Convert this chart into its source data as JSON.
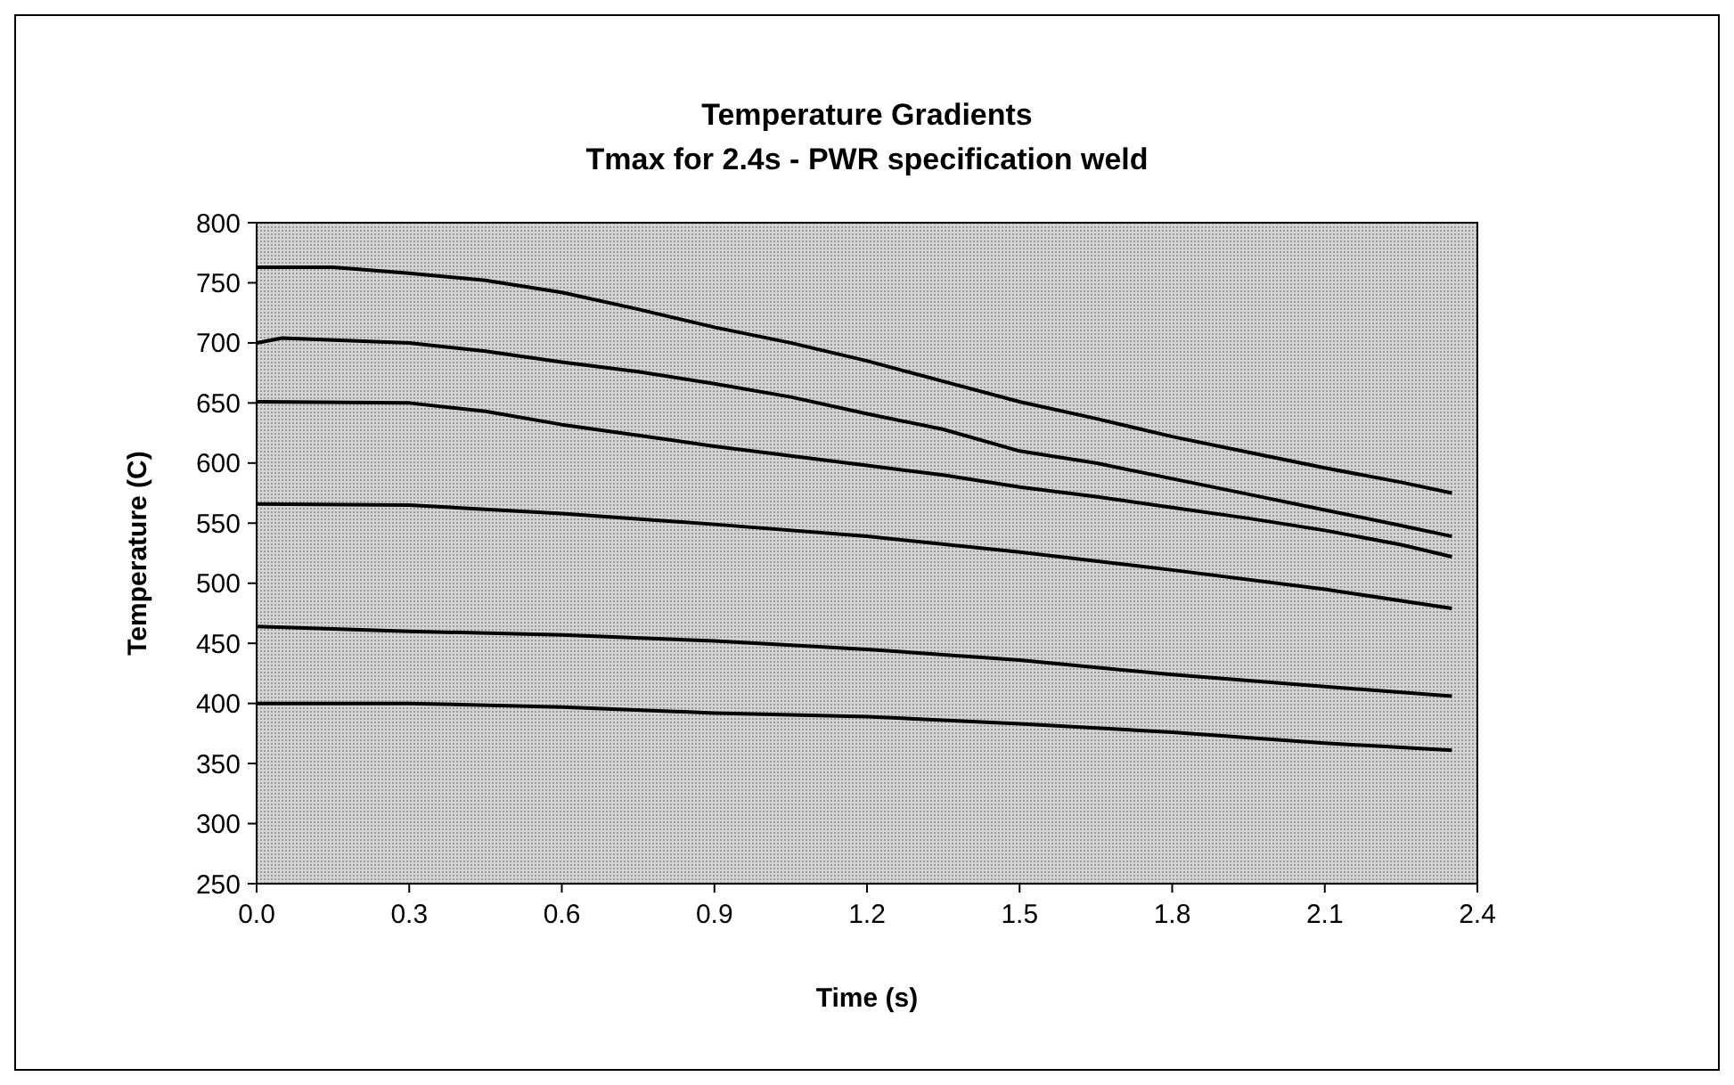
{
  "chart_data": {
    "type": "line",
    "title": "Temperature Gradients",
    "subtitle": "Tmax for 2.4s - PWR specification weld",
    "xlabel": "Time (s)",
    "ylabel": "Temperature (C)",
    "xlim": [
      0,
      2.4
    ],
    "xticks": [
      {
        "value": 0,
        "label": "0.0"
      },
      {
        "value": 0.3,
        "label": "0.3"
      },
      {
        "value": 0.6,
        "label": "0.6"
      },
      {
        "value": 0.9,
        "label": "0.9"
      },
      {
        "value": 1.2,
        "label": "1.2"
      },
      {
        "value": 1.5,
        "label": "1.5"
      },
      {
        "value": 1.8,
        "label": "1.8"
      },
      {
        "value": 2.1,
        "label": "2.1"
      },
      {
        "value": 2.4,
        "label": "2.4"
      }
    ],
    "ylim": [
      250,
      800
    ],
    "yticks": [
      250,
      300,
      350,
      400,
      450,
      500,
      550,
      600,
      650,
      700,
      750,
      800
    ],
    "grid": false,
    "series": [
      {
        "color": "#000000",
        "x": [
          0,
          0.15,
          0.3,
          0.45,
          0.6,
          0.75,
          0.9,
          1.05,
          1.2,
          1.35,
          1.5,
          1.65,
          1.8,
          1.95,
          2.1,
          2.25,
          2.35
        ],
        "values": [
          763,
          763,
          758,
          752,
          742,
          728,
          713,
          700,
          685,
          668,
          651,
          637,
          622,
          609,
          596,
          584,
          575
        ]
      },
      {
        "color": "#000000",
        "x": [
          0,
          0.05,
          0.3,
          0.45,
          0.6,
          0.75,
          0.9,
          1.05,
          1.2,
          1.35,
          1.5,
          1.65,
          1.8,
          1.95,
          2.1,
          2.25,
          2.35
        ],
        "values": [
          700,
          704,
          700,
          693,
          684,
          676,
          666,
          655,
          641,
          628,
          610,
          600,
          587,
          574,
          561,
          548,
          539
        ]
      },
      {
        "color": "#000000",
        "x": [
          0,
          0.3,
          0.45,
          0.6,
          0.75,
          0.9,
          1.05,
          1.2,
          1.35,
          1.5,
          1.65,
          1.8,
          1.95,
          2.1,
          2.25,
          2.35
        ],
        "values": [
          651,
          650,
          643,
          632,
          623,
          614,
          606,
          598,
          590,
          580,
          572,
          563,
          554,
          544,
          532,
          522
        ]
      },
      {
        "color": "#000000",
        "x": [
          0,
          0.3,
          0.6,
          0.9,
          1.2,
          1.5,
          1.8,
          2.1,
          2.35
        ],
        "values": [
          566,
          565,
          558,
          549,
          539,
          526,
          511,
          495,
          479
        ]
      },
      {
        "color": "#000000",
        "x": [
          0,
          0.3,
          0.6,
          0.9,
          1.2,
          1.5,
          1.8,
          2.1,
          2.35
        ],
        "values": [
          464,
          460,
          457,
          452,
          445,
          436,
          424,
          414,
          406
        ]
      },
      {
        "color": "#000000",
        "x": [
          0,
          0.3,
          0.6,
          0.9,
          1.2,
          1.5,
          1.8,
          2.1,
          2.35
        ],
        "values": [
          400,
          400,
          397,
          392,
          389,
          383,
          376,
          367,
          361
        ]
      }
    ]
  }
}
